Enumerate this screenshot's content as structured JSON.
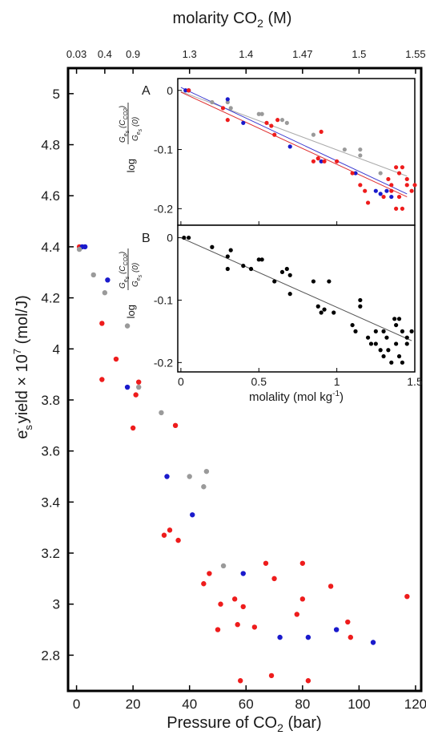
{
  "chart_data": {
    "main": {
      "type": "scatter",
      "top_title": "molarity CO",
      "top_title_sub": "2",
      "top_title_unit": " (M)",
      "top_tick_labels": [
        "0.03",
        "0.4",
        "0.9",
        "1.3",
        "1.4",
        "1.47",
        "1.5",
        "1.55"
      ],
      "top_tick_positions_bar": [
        0,
        10,
        20,
        40,
        60,
        80,
        100,
        120
      ],
      "xlabel": "Pressure of CO",
      "xlabel_sub": "2",
      "xlabel_unit": " (bar)",
      "ylabel_parts": [
        "e",
        "s",
        "-",
        " yield × 10",
        "7",
        " (mol/J)"
      ],
      "xlim": [
        -3,
        122
      ],
      "ylim": [
        2.66,
        5.1
      ],
      "xticks": [
        0,
        20,
        40,
        60,
        80,
        100,
        120
      ],
      "yticks": [
        2.8,
        3.0,
        3.2,
        3.4,
        3.6,
        3.8,
        4.0,
        4.2,
        4.4,
        4.6,
        4.8,
        5.0
      ],
      "ytick_labels": [
        "2.8",
        "3",
        "3.2",
        "3.4",
        "3.6",
        "3.8",
        "4",
        "4.2",
        "4.4",
        "4.6",
        "4.8",
        "5"
      ],
      "series": [
        {
          "color": "#ee1c1c",
          "points": [
            [
              1,
              4.4
            ],
            [
              9,
              4.1
            ],
            [
              9,
              3.88
            ],
            [
              14,
              3.96
            ],
            [
              20,
              3.69
            ],
            [
              21,
              3.82
            ],
            [
              22,
              3.87
            ],
            [
              31,
              3.27
            ],
            [
              33,
              3.29
            ],
            [
              35,
              3.7
            ],
            [
              36,
              3.25
            ],
            [
              45,
              3.08
            ],
            [
              47,
              3.12
            ],
            [
              50,
              2.9
            ],
            [
              51,
              3.0
            ],
            [
              56,
              3.02
            ],
            [
              57,
              2.92
            ],
            [
              58,
              2.7
            ],
            [
              59,
              2.99
            ],
            [
              63,
              2.91
            ],
            [
              67,
              3.16
            ],
            [
              69,
              2.72
            ],
            [
              70,
              3.1
            ],
            [
              78,
              2.96
            ],
            [
              80,
              3.16
            ],
            [
              80,
              3.02
            ],
            [
              82,
              2.7
            ],
            [
              90,
              3.07
            ],
            [
              96,
              2.93
            ],
            [
              97,
              2.87
            ],
            [
              117,
              3.03
            ]
          ]
        },
        {
          "color": "#1a1acc",
          "points": [
            [
              2,
              4.4
            ],
            [
              3,
              4.4
            ],
            [
              11,
              4.27
            ],
            [
              18,
              3.85
            ],
            [
              32,
              3.5
            ],
            [
              41,
              3.35
            ],
            [
              59,
              3.12
            ],
            [
              72,
              2.87
            ],
            [
              82,
              2.87
            ],
            [
              92,
              2.9
            ],
            [
              105,
              2.85
            ]
          ]
        },
        {
          "color": "#9a9a9a",
          "points": [
            [
              1,
              4.39
            ],
            [
              6,
              4.29
            ],
            [
              10,
              4.22
            ],
            [
              18,
              4.09
            ],
            [
              22,
              3.85
            ],
            [
              30,
              3.75
            ],
            [
              40,
              3.5
            ],
            [
              45,
              3.46
            ],
            [
              46,
              3.52
            ],
            [
              52,
              3.15
            ]
          ]
        }
      ]
    },
    "inset_a": {
      "type": "scatter",
      "panel_label": "A",
      "xlim": [
        -0.02,
        1.5
      ],
      "ylim": [
        -0.228,
        0.02
      ],
      "yticks": [
        0,
        -0.1,
        -0.2
      ],
      "ytick_labels": [
        "0",
        "-0.1",
        "-0.2"
      ],
      "ylabel": "log G(C)/G(0)",
      "series": [
        {
          "color": "#9a9a9a",
          "points": [
            [
              0.05,
              0
            ],
            [
              0.2,
              -0.02
            ],
            [
              0.3,
              -0.02
            ],
            [
              0.32,
              -0.03
            ],
            [
              0.5,
              -0.04
            ],
            [
              0.52,
              -0.04
            ],
            [
              0.65,
              -0.05
            ],
            [
              0.68,
              -0.055
            ],
            [
              0.85,
              -0.075
            ],
            [
              1.05,
              -0.1
            ],
            [
              1.15,
              -0.1
            ],
            [
              1.15,
              -0.11
            ],
            [
              1.28,
              -0.14
            ]
          ]
        },
        {
          "color": "#1a1acc",
          "points": [
            [
              0.03,
              0
            ],
            [
              0.05,
              0
            ],
            [
              0.3,
              -0.015
            ],
            [
              0.4,
              -0.055
            ],
            [
              0.7,
              -0.095
            ],
            [
              0.9,
              -0.12
            ],
            [
              1.12,
              -0.14
            ],
            [
              1.25,
              -0.17
            ],
            [
              1.28,
              -0.175
            ],
            [
              1.32,
              -0.17
            ],
            [
              1.35,
              -0.18
            ]
          ]
        },
        {
          "color": "#ee1c1c",
          "points": [
            [
              0.05,
              0
            ],
            [
              0.27,
              -0.03
            ],
            [
              0.3,
              -0.05
            ],
            [
              0.55,
              -0.055
            ],
            [
              0.58,
              -0.06
            ],
            [
              0.6,
              -0.075
            ],
            [
              0.62,
              -0.05
            ],
            [
              0.85,
              -0.12
            ],
            [
              0.88,
              -0.115
            ],
            [
              0.92,
              -0.12
            ],
            [
              0.9,
              -0.07
            ],
            [
              1.0,
              -0.12
            ],
            [
              1.1,
              -0.14
            ],
            [
              1.15,
              -0.16
            ],
            [
              1.18,
              -0.17
            ],
            [
              1.2,
              -0.19
            ],
            [
              1.3,
              -0.18
            ],
            [
              1.33,
              -0.15
            ],
            [
              1.35,
              -0.16
            ],
            [
              1.35,
              -0.17
            ],
            [
              1.38,
              -0.13
            ],
            [
              1.38,
              -0.2
            ],
            [
              1.4,
              -0.14
            ],
            [
              1.4,
              -0.18
            ],
            [
              1.42,
              -0.13
            ],
            [
              1.42,
              -0.2
            ],
            [
              1.45,
              -0.15
            ],
            [
              1.45,
              -0.16
            ],
            [
              1.48,
              -0.17
            ],
            [
              1.5,
              -0.16
            ]
          ]
        }
      ],
      "fit_lines": [
        {
          "color": "#aaaaaa",
          "from": [
            0.0,
            -0.002
          ],
          "to": [
            1.45,
            -0.145
          ]
        },
        {
          "color": "#3a3ad0",
          "from": [
            0.0,
            0.005
          ],
          "to": [
            1.45,
            -0.175
          ]
        },
        {
          "color": "#e03030",
          "from": [
            0.0,
            -0.003
          ],
          "to": [
            1.45,
            -0.18
          ]
        }
      ]
    },
    "inset_b": {
      "type": "scatter",
      "panel_label": "B",
      "xlabel": "molality (mol kg",
      "xlabel_sup": "-1",
      "xlabel_close": ")",
      "xlim": [
        -0.02,
        1.5
      ],
      "ylim": [
        -0.215,
        0.02
      ],
      "xticks": [
        0,
        0.5,
        1.0,
        1.5
      ],
      "xtick_labels": [
        "0",
        "0.5",
        "1",
        "1.5"
      ],
      "yticks": [
        0,
        -0.1,
        -0.2
      ],
      "ytick_labels": [
        "0",
        "-0.1",
        "-0.2"
      ],
      "series": [
        {
          "color": "#000000",
          "points": [
            [
              0.02,
              0
            ],
            [
              0.05,
              0
            ],
            [
              0.2,
              -0.015
            ],
            [
              0.3,
              -0.03
            ],
            [
              0.3,
              -0.05
            ],
            [
              0.32,
              -0.02
            ],
            [
              0.4,
              -0.045
            ],
            [
              0.45,
              -0.05
            ],
            [
              0.5,
              -0.035
            ],
            [
              0.52,
              -0.035
            ],
            [
              0.6,
              -0.07
            ],
            [
              0.65,
              -0.055
            ],
            [
              0.68,
              -0.05
            ],
            [
              0.7,
              -0.06
            ],
            [
              0.7,
              -0.09
            ],
            [
              0.85,
              -0.07
            ],
            [
              0.88,
              -0.11
            ],
            [
              0.9,
              -0.12
            ],
            [
              0.92,
              -0.115
            ],
            [
              0.95,
              -0.07
            ],
            [
              0.98,
              -0.12
            ],
            [
              1.1,
              -0.14
            ],
            [
              1.12,
              -0.15
            ],
            [
              1.15,
              -0.1
            ],
            [
              1.15,
              -0.11
            ],
            [
              1.2,
              -0.16
            ],
            [
              1.22,
              -0.17
            ],
            [
              1.25,
              -0.17
            ],
            [
              1.28,
              -0.18
            ],
            [
              1.3,
              -0.15
            ],
            [
              1.32,
              -0.16
            ],
            [
              1.33,
              -0.18
            ],
            [
              1.35,
              -0.2
            ],
            [
              1.37,
              -0.13
            ],
            [
              1.38,
              -0.14
            ],
            [
              1.38,
              -0.17
            ],
            [
              1.4,
              -0.13
            ],
            [
              1.4,
              -0.19
            ],
            [
              1.42,
              -0.15
            ],
            [
              1.42,
              -0.2
            ],
            [
              1.45,
              -0.16
            ],
            [
              1.45,
              -0.17
            ],
            [
              1.48,
              -0.15
            ],
            [
              1.3,
              -0.19
            ],
            [
              1.25,
              -0.15
            ]
          ]
        }
      ],
      "fit_lines": [
        {
          "color": "#555555",
          "from": [
            0.0,
            0.0
          ],
          "to": [
            1.48,
            -0.165
          ]
        }
      ]
    }
  }
}
